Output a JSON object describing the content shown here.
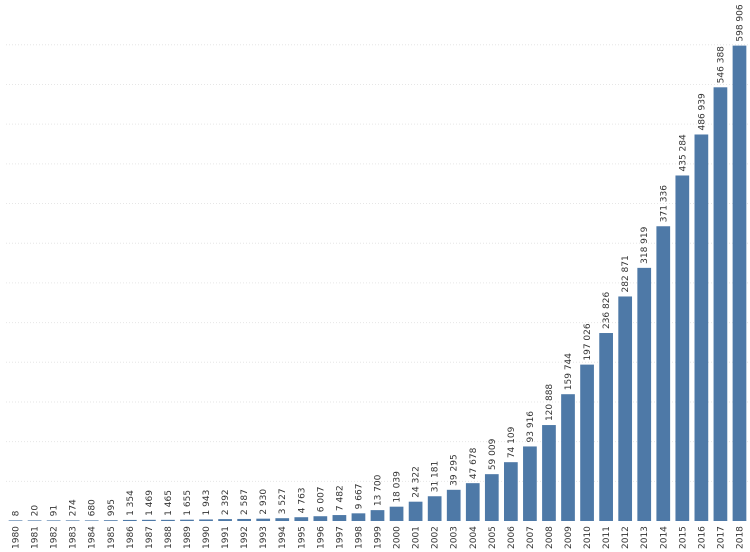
{
  "chart_data": {
    "type": "bar",
    "title": "",
    "xlabel": "",
    "ylabel": "",
    "ylim": [
      0,
      640000
    ],
    "grid": true,
    "legend": "none",
    "bar_color": "#4e79a7",
    "grid_color": "#e6e6e6",
    "categories": [
      "1980",
      "1981",
      "1982",
      "1983",
      "1984",
      "1985",
      "1986",
      "1987",
      "1988",
      "1989",
      "1990",
      "1991",
      "1992",
      "1993",
      "1994",
      "1995",
      "1996",
      "1997",
      "1998",
      "1999",
      "2000",
      "2001",
      "2002",
      "2003",
      "2004",
      "2005",
      "2006",
      "2007",
      "2008",
      "2009",
      "2010",
      "2011",
      "2012",
      "2013",
      "2014",
      "2015",
      "2016",
      "2017",
      "2018"
    ],
    "values": [
      8,
      20,
      91,
      274,
      680,
      995,
      1354,
      1469,
      1465,
      1655,
      1943,
      2392,
      2587,
      2930,
      3527,
      4763,
      6007,
      7482,
      9667,
      13700,
      18039,
      24322,
      31181,
      39295,
      47678,
      59009,
      74109,
      93916,
      120888,
      159744,
      197026,
      236826,
      282871,
      318919,
      371336,
      435284,
      486939,
      546388,
      598906
    ],
    "value_labels": [
      "8",
      "20",
      "91",
      "274",
      "680",
      "995",
      "1 354",
      "1 469",
      "1 465",
      "1 655",
      "1 943",
      "2 392",
      "2 587",
      "2 930",
      "3 527",
      "4 763",
      "6 007",
      "7 482",
      "9 667",
      "13 700",
      "18 039",
      "24 322",
      "31 181",
      "39 295",
      "47 678",
      "59 009",
      "74 109",
      "93 916",
      "120 888",
      "159 744",
      "197 026",
      "236 826",
      "282 871",
      "318 919",
      "371 336",
      "435 284",
      "486 939",
      "546 388",
      "598 906"
    ]
  }
}
